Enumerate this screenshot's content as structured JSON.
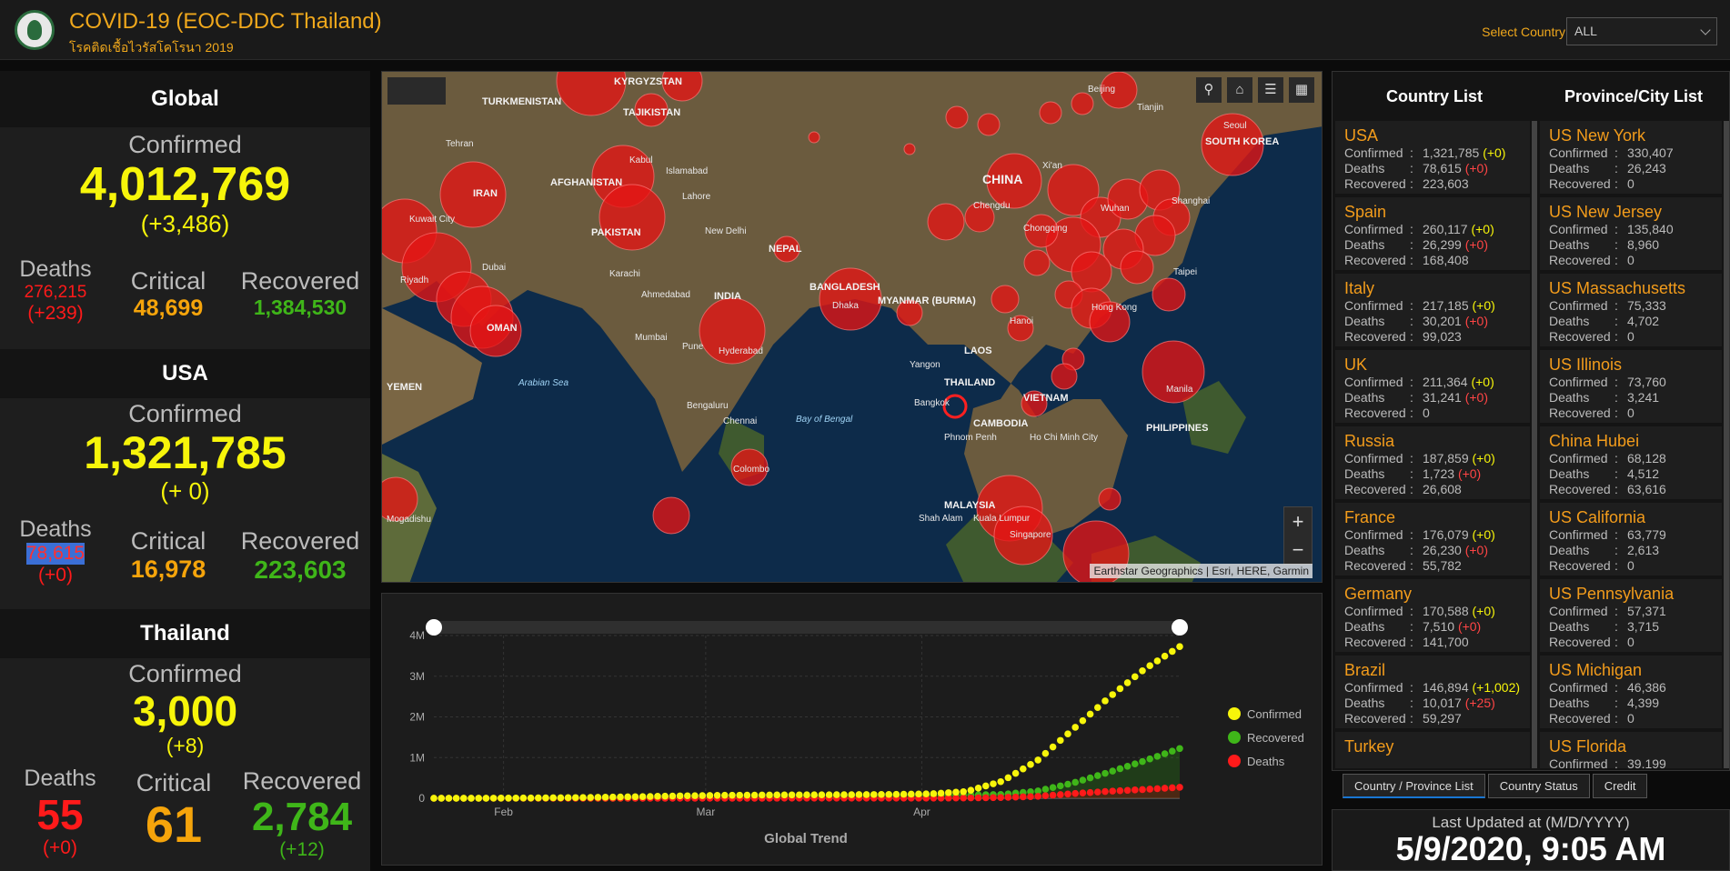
{
  "header": {
    "title": "COVID-19 (EOC-DDC Thailand)",
    "subtitle": "โรคติดเชื้อไวรัสโคโรนา 2019",
    "select_label": "Select Country",
    "select_value": "ALL"
  },
  "global": {
    "heading": "Global",
    "confirmed_label": "Confirmed",
    "confirmed": "4,012,769",
    "confirmed_delta": "(+3,486)",
    "deaths_label": "Deaths",
    "deaths": "276,215",
    "deaths_delta": "(+239)",
    "critical_label": "Critical",
    "critical": "48,699",
    "recovered_label": "Recovered",
    "recovered": "1,384,530"
  },
  "usa": {
    "heading": "USA",
    "confirmed_label": "Confirmed",
    "confirmed": "1,321,785",
    "confirmed_delta": "(+ 0)",
    "deaths_label": "Deaths",
    "deaths": "78,615",
    "deaths_delta": "(+0)",
    "critical_label": "Critical",
    "critical": "16,978",
    "recovered_label": "Recovered",
    "recovered": "223,603"
  },
  "thailand": {
    "heading": "Thailand",
    "confirmed_label": "Confirmed",
    "confirmed": "3,000",
    "confirmed_delta": "(+8)",
    "deaths_label": "Deaths",
    "deaths": "55",
    "deaths_delta": "(+0)",
    "critical_label": "Critical",
    "critical": "61",
    "recovered_label": "Recovered",
    "recovered": "2,784",
    "recovered_delta": "(+12)"
  },
  "map": {
    "attribution": "Earthstar Geographics | Esri, HERE, Garmin",
    "labels": {
      "china": "CHINA",
      "india": "INDIA",
      "iran": "IRAN",
      "afghanistan": "AFGHANISTAN",
      "pakistan": "PAKISTAN",
      "turkmenistan": "TURKMENISTAN",
      "tajikistan": "TAJIKISTAN",
      "kyrgyzstan": "KYRGYZSTAN",
      "nepal": "NEPAL",
      "bangladesh": "BANGLADESH",
      "myanmar": "MYANMAR (BURMA)",
      "laos": "LAOS",
      "thailand": "THAILAND",
      "vietnam": "VIETNAM",
      "cambodia": "CAMBODIA",
      "philippines": "PHILIPPINES",
      "malaysia": "MALAYSIA",
      "south_korea": "SOUTH KOREA",
      "oman": "OMAN",
      "yemen": "YEMEN",
      "arabian_sea": "Arabian Sea",
      "bay_of_bengal": "Bay of Bengal",
      "tehran": "Tehran",
      "kabul": "Kabul",
      "islamabad": "Islamabad",
      "lahore": "Lahore",
      "new_delhi": "New Delhi",
      "karachi": "Karachi",
      "ahmedabad": "Ahmedabad",
      "mumbai": "Mumbai",
      "pune": "Pune",
      "hyderabad": "Hyderabad",
      "bengaluru": "Bengaluru",
      "chennai": "Chennai",
      "colombo": "Colombo",
      "dhaka": "Dhaka",
      "yangon": "Yangon",
      "bangkok": "Bangkok",
      "hanoi": "Hanoi",
      "hong_kong": "Hong Kong",
      "taipei": "Taipei",
      "manila": "Manila",
      "shanghai": "Shanghai",
      "wuhan": "Wuhan",
      "chongqing": "Chongqing",
      "chengdu": "Chengdu",
      "xian": "Xi'an",
      "beijing": "Beijing",
      "tianjin": "Tianjin",
      "seoul": "Seoul",
      "kuala_lumpur": "Kuala Lumpur",
      "singapore": "Singapore",
      "dubai": "Dubai",
      "riyadh": "Riyadh",
      "kuwait": "Kuwait City",
      "mogadishu": "Mogadishu",
      "ho_chi_minh": "Ho Chi Minh City",
      "phnom_penh": "Phnom Penh",
      "shah_alam": "Shah Alam"
    }
  },
  "chart_data": {
    "type": "line",
    "title": "",
    "xlabel": "Global Trend",
    "ylabel": "",
    "x_ticks": [
      "Feb",
      "Mar",
      "Apr"
    ],
    "y_ticks": [
      "0",
      "1M",
      "2M",
      "3M",
      "4M"
    ],
    "ylim": [
      0,
      4000000
    ],
    "x_range": [
      "2020-01-22",
      "2020-05-08"
    ],
    "series": [
      {
        "name": "Confirmed",
        "color": "#f7f50a",
        "values": [
          0.0006,
          0.001,
          0.004,
          0.009,
          0.017,
          0.028,
          0.043,
          0.06,
          0.072,
          0.078,
          0.083,
          0.086,
          0.09,
          0.096,
          0.109,
          0.166,
          0.418,
          0.933,
          1.697,
          2.471,
          3.168,
          3.728
        ]
      },
      {
        "name": "Recovered",
        "color": "#3fb619",
        "values": [
          0.0,
          0.0,
          0.0,
          0.0,
          0.001,
          0.002,
          0.005,
          0.01,
          0.017,
          0.027,
          0.04,
          0.054,
          0.062,
          0.068,
          0.074,
          0.08,
          0.095,
          0.178,
          0.376,
          0.638,
          0.918,
          1.223
        ]
      },
      {
        "name": "Deaths",
        "color": "#ff1a1a",
        "values": [
          0.0,
          0.0,
          0.0,
          0.0,
          0.0,
          0.001,
          0.001,
          0.001,
          0.002,
          0.002,
          0.003,
          0.003,
          0.003,
          0.003,
          0.004,
          0.007,
          0.019,
          0.047,
          0.115,
          0.171,
          0.217,
          0.27
        ]
      }
    ],
    "value_unit_multiplier": 1000000
  },
  "country_list": {
    "heading": "Country List",
    "confirmed_label": "Confirmed",
    "deaths_label": "Deaths",
    "recovered_label": "Recovered",
    "items": [
      {
        "name": "USA",
        "confirmed": "1,321,785",
        "confirmed_delta": "(+0)",
        "deaths": "78,615",
        "deaths_delta": "(+0)",
        "recovered": "223,603"
      },
      {
        "name": "Spain",
        "confirmed": "260,117",
        "confirmed_delta": "(+0)",
        "deaths": "26,299",
        "deaths_delta": "(+0)",
        "recovered": "168,408"
      },
      {
        "name": "Italy",
        "confirmed": "217,185",
        "confirmed_delta": "(+0)",
        "deaths": "30,201",
        "deaths_delta": "(+0)",
        "recovered": "99,023"
      },
      {
        "name": "UK",
        "confirmed": "211,364",
        "confirmed_delta": "(+0)",
        "deaths": "31,241",
        "deaths_delta": "(+0)",
        "recovered": "0"
      },
      {
        "name": "Russia",
        "confirmed": "187,859",
        "confirmed_delta": "(+0)",
        "deaths": "1,723",
        "deaths_delta": "(+0)",
        "recovered": "26,608"
      },
      {
        "name": "France",
        "confirmed": "176,079",
        "confirmed_delta": "(+0)",
        "deaths": "26,230",
        "deaths_delta": "(+0)",
        "recovered": "55,782"
      },
      {
        "name": "Germany",
        "confirmed": "170,588",
        "confirmed_delta": "(+0)",
        "deaths": "7,510",
        "deaths_delta": "(+0)",
        "recovered": "141,700"
      },
      {
        "name": "Brazil",
        "confirmed": "146,894",
        "confirmed_delta": "(+1,002)",
        "deaths": "10,017",
        "deaths_delta": "(+25)",
        "recovered": "59,297"
      },
      {
        "name": "Turkey"
      }
    ]
  },
  "province_list": {
    "heading": "Province/City List",
    "items": [
      {
        "name": "US New York",
        "confirmed": "330,407",
        "deaths": "26,243",
        "recovered": "0"
      },
      {
        "name": "US New Jersey",
        "confirmed": "135,840",
        "deaths": "8,960",
        "recovered": "0"
      },
      {
        "name": "US Massachusetts",
        "confirmed": "75,333",
        "deaths": "4,702",
        "recovered": "0"
      },
      {
        "name": "US Illinois",
        "confirmed": "73,760",
        "deaths": "3,241",
        "recovered": "0"
      },
      {
        "name": "China Hubei",
        "confirmed": "68,128",
        "deaths": "4,512",
        "recovered": "63,616"
      },
      {
        "name": "US California",
        "confirmed": "63,779",
        "deaths": "2,613",
        "recovered": "0"
      },
      {
        "name": "US Pennsylvania",
        "confirmed": "57,371",
        "deaths": "3,715",
        "recovered": "0"
      },
      {
        "name": "US Michigan",
        "confirmed": "46,386",
        "deaths": "4,399",
        "recovered": "0"
      },
      {
        "name": "US Florida",
        "confirmed": "39,199"
      }
    ]
  },
  "tabs": [
    "Country / Province List",
    "Country Status",
    "Credit"
  ],
  "updated": {
    "label": "Last Updated at (M/D/YYYY)",
    "value": "5/9/2020, 9:05 AM"
  },
  "colors": {
    "accent": "#f0a81c",
    "confirmed": "#f7f50a",
    "recovered": "#3fb619",
    "deaths": "#ff1a1a"
  }
}
